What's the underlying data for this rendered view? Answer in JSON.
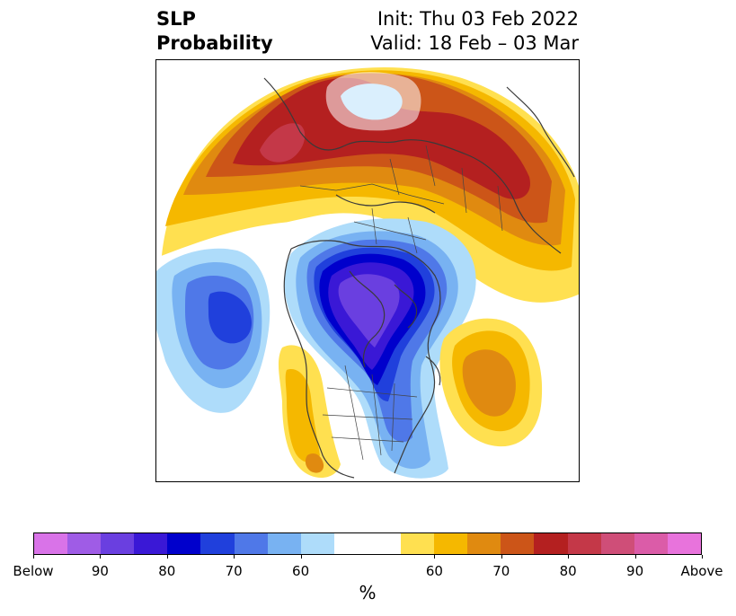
{
  "title": {
    "left_line1": "SLP",
    "left_line2": "Probability",
    "right_line1": "Init: Thu 03 Feb 2022",
    "right_line2": "Valid: 18 Feb – 03 Mar"
  },
  "colors": {
    "below": [
      "#d973e8",
      "#9f5ce6",
      "#6a3fe0",
      "#3a18d6",
      "#0000cc",
      "#2040dc",
      "#4f78e8",
      "#78b2f2",
      "#aedcfa"
    ],
    "neutral": "#ffffff",
    "above": [
      "#ffe050",
      "#f5b800",
      "#e08a10",
      "#cc5518",
      "#b42020",
      "#c43848",
      "#cf4e78",
      "#db5ca8",
      "#e873dc"
    ]
  },
  "colorbar": {
    "ticks": [
      "Below",
      "90",
      "80",
      "70",
      "60",
      "60",
      "70",
      "80",
      "90",
      "Above"
    ],
    "unit": "%"
  }
}
